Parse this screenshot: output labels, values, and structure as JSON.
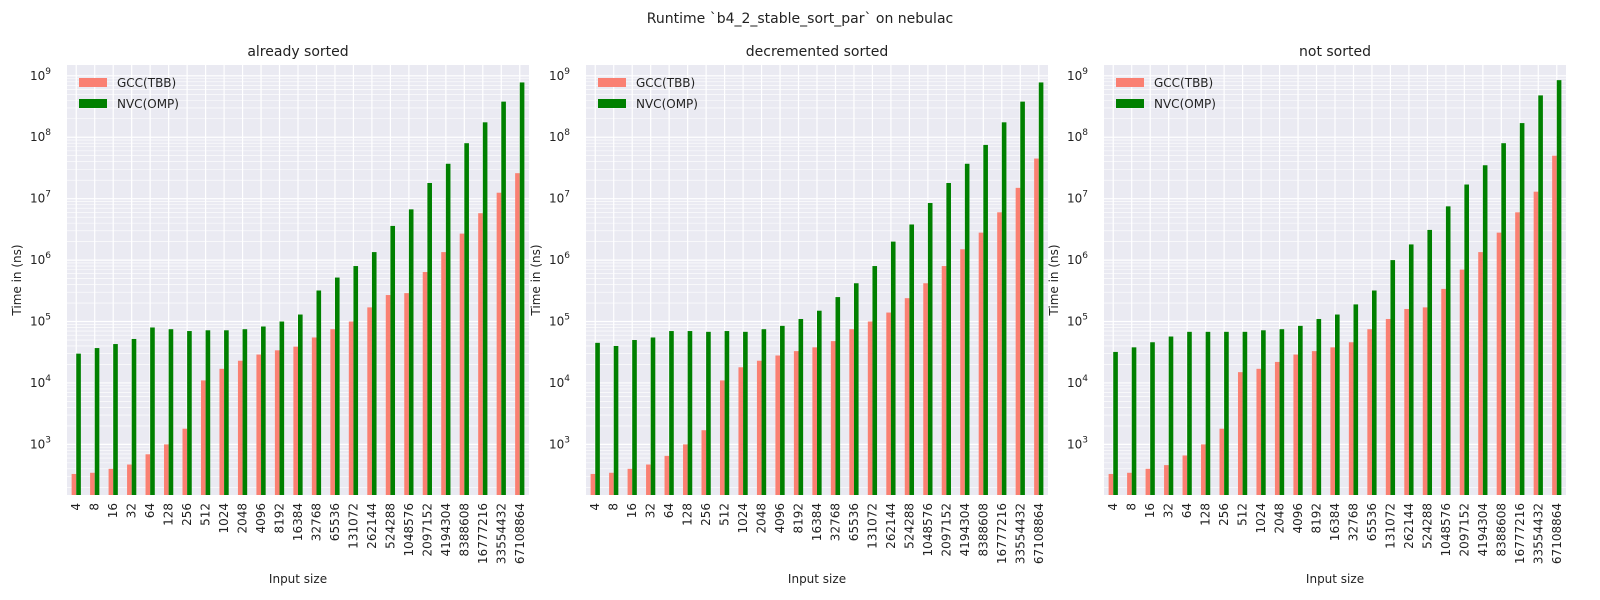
{
  "figure": {
    "suptitle": "Runtime `b4_2_stable_sort_par` on nebulac"
  },
  "colors": {
    "plot_bg": "#eaeaf2",
    "grid": "#ffffff",
    "gcc": "#fa8072",
    "nvc": "#008000"
  },
  "chart_data": [
    {
      "type": "bar",
      "title": "already sorted",
      "xlabel": "Input size",
      "ylabel": "Time in (ns)",
      "yscale": "log",
      "ylim": [
        150,
        1500000000
      ],
      "yticks": [
        1000,
        10000,
        100000,
        1000000,
        10000000,
        100000000,
        1000000000
      ],
      "ytick_exponents": [
        "3",
        "4",
        "5",
        "6",
        "7",
        "8",
        "9"
      ],
      "grid": true,
      "legend": "top-left",
      "categories": [
        "4",
        "8",
        "16",
        "32",
        "64",
        "128",
        "256",
        "512",
        "1024",
        "2048",
        "4096",
        "8192",
        "16384",
        "32768",
        "65536",
        "131072",
        "262144",
        "524288",
        "1048576",
        "2097152",
        "4194304",
        "8388608",
        "16777216",
        "33554432",
        "67108864"
      ],
      "series": [
        {
          "name": "GCC(TBB)",
          "values": [
            330,
            345,
            400,
            470,
            690,
            1000,
            1800,
            11000,
            17000,
            23000,
            29000,
            34000,
            39000,
            55000,
            75000,
            100000,
            170000,
            270000,
            290000,
            640000,
            1350000,
            2700000,
            5800000,
            12500000,
            26000000
          ]
        },
        {
          "name": "NVC(OMP)",
          "values": [
            30000,
            37000,
            43000,
            52000,
            80000,
            75000,
            70000,
            72000,
            72000,
            75000,
            83000,
            100000,
            130000,
            320000,
            520000,
            800000,
            1350000,
            3600000,
            6700000,
            18000000,
            37000000,
            80000000,
            175000000,
            380000000,
            780000000
          ]
        }
      ]
    },
    {
      "type": "bar",
      "title": "decremented sorted",
      "xlabel": "Input size",
      "ylabel": "Time in (ns)",
      "yscale": "log",
      "ylim": [
        150,
        1500000000
      ],
      "yticks": [
        1000,
        10000,
        100000,
        1000000,
        10000000,
        100000000,
        1000000000
      ],
      "ytick_exponents": [
        "3",
        "4",
        "5",
        "6",
        "7",
        "8",
        "9"
      ],
      "grid": true,
      "legend": "top-left",
      "categories": [
        "4",
        "8",
        "16",
        "32",
        "64",
        "128",
        "256",
        "512",
        "1024",
        "2048",
        "4096",
        "8192",
        "16384",
        "32768",
        "65536",
        "131072",
        "262144",
        "524288",
        "1048576",
        "2097152",
        "4194304",
        "8388608",
        "16777216",
        "33554432",
        "67108864"
      ],
      "series": [
        {
          "name": "GCC(TBB)",
          "values": [
            330,
            345,
            400,
            470,
            650,
            1000,
            1700,
            11000,
            18000,
            23000,
            28000,
            33000,
            38000,
            48000,
            75000,
            100000,
            140000,
            240000,
            420000,
            800000,
            1500000,
            2800000,
            6000000,
            15000000,
            45000000
          ]
        },
        {
          "name": "NVC(OMP)",
          "values": [
            45000,
            40000,
            50000,
            55000,
            70000,
            70000,
            68000,
            70000,
            68000,
            75000,
            85000,
            110000,
            150000,
            250000,
            420000,
            800000,
            2000000,
            3800000,
            8500000,
            18000000,
            37000000,
            75000000,
            175000000,
            380000000,
            780000000
          ]
        }
      ]
    },
    {
      "type": "bar",
      "title": "not sorted",
      "xlabel": "Input size",
      "ylabel": "Time in (ns)",
      "yscale": "log",
      "ylim": [
        150,
        1500000000
      ],
      "yticks": [
        1000,
        10000,
        100000,
        1000000,
        10000000,
        100000000,
        1000000000
      ],
      "ytick_exponents": [
        "3",
        "4",
        "5",
        "6",
        "7",
        "8",
        "9"
      ],
      "grid": true,
      "legend": "top-left",
      "categories": [
        "4",
        "8",
        "16",
        "32",
        "64",
        "128",
        "256",
        "512",
        "1024",
        "2048",
        "4096",
        "8192",
        "16384",
        "32768",
        "65536",
        "131072",
        "262144",
        "524288",
        "1048576",
        "2097152",
        "4194304",
        "8388608",
        "16777216",
        "33554432",
        "67108864"
      ],
      "series": [
        {
          "name": "GCC(TBB)",
          "values": [
            330,
            345,
            400,
            460,
            660,
            1000,
            1800,
            15000,
            17000,
            22000,
            29000,
            33000,
            38000,
            46000,
            75000,
            110000,
            160000,
            170000,
            340000,
            700000,
            1350000,
            2800000,
            6000000,
            13000000,
            50000000
          ]
        },
        {
          "name": "NVC(OMP)",
          "values": [
            32000,
            38000,
            46000,
            57000,
            68000,
            68000,
            68000,
            68000,
            72000,
            75000,
            85000,
            110000,
            130000,
            190000,
            320000,
            1000000,
            1800000,
            3100000,
            7500000,
            17000000,
            35000000,
            80000000,
            170000000,
            480000000,
            850000000
          ]
        }
      ]
    }
  ]
}
